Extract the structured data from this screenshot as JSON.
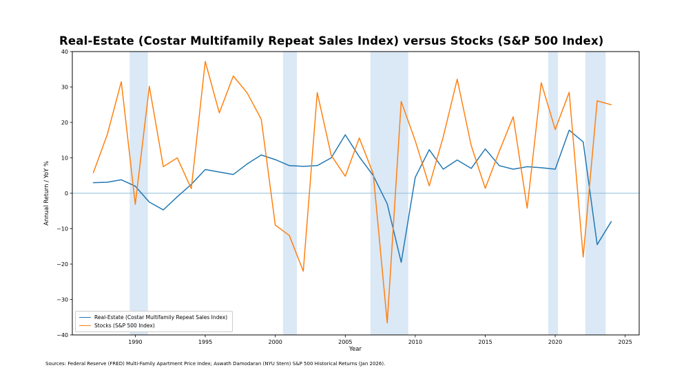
{
  "title": "Real-Estate (Costar Multifamily Repeat Sales Index) versus Stocks (S&P 500 Index)",
  "source_note": "Sources: Federal Reserve (FRED) Multi-Family Apartment Price Index; Aswath Damodaran (NYU Stern) S&P 500 Historical Returns (Jan 2026).",
  "chart_data": {
    "type": "line",
    "title": "Real-Estate (Costar Multifamily Repeat Sales Index) versus Stocks (S&P 500 Index)",
    "xlabel": "Year",
    "ylabel": "Annual Return / YoY %",
    "xlim": [
      1985.5,
      2026
    ],
    "ylim": [
      -40,
      40
    ],
    "xticks": [
      1990,
      1995,
      2000,
      2005,
      2010,
      2015,
      2020,
      2025
    ],
    "yticks": [
      -40,
      -30,
      -20,
      -10,
      0,
      10,
      20,
      30,
      40
    ],
    "grid": false,
    "legend_position": "lower left",
    "zero_line_color": "#8bbdd9",
    "band_color": "#dbe8f5",
    "recession_bands": [
      [
        1989.6,
        1990.9
      ],
      [
        2000.55,
        2001.55
      ],
      [
        2006.8,
        2009.5
      ],
      [
        2019.5,
        2020.2
      ],
      [
        2022.15,
        2023.6
      ]
    ],
    "x": [
      1987,
      1988,
      1989,
      1990,
      1991,
      1992,
      1993,
      1994,
      1995,
      1996,
      1997,
      1998,
      1999,
      2000,
      2001,
      2002,
      2003,
      2004,
      2005,
      2006,
      2007,
      2008,
      2009,
      2010,
      2011,
      2012,
      2013,
      2014,
      2015,
      2016,
      2017,
      2018,
      2019,
      2020,
      2021,
      2022,
      2023,
      2024
    ],
    "series": [
      {
        "name": "Real-Estate (Costar Multifamily Repeat Sales Index)",
        "color": "#1f77b4",
        "values": [
          3.0,
          3.1,
          3.8,
          2.0,
          -2.5,
          -4.7,
          -1.0,
          2.5,
          6.7,
          6.0,
          5.3,
          8.3,
          10.8,
          9.5,
          7.8,
          7.6,
          7.8,
          10.0,
          16.5,
          10.3,
          5.0,
          -3.0,
          -19.5,
          4.5,
          12.3,
          6.8,
          9.4,
          7.0,
          12.5,
          7.8,
          6.8,
          7.5,
          7.2,
          6.8,
          17.8,
          14.5,
          -14.5,
          -8.0
        ]
      },
      {
        "name": "Stocks (S&P 500 Index)",
        "color": "#ff7f0e",
        "values": [
          5.8,
          16.6,
          31.5,
          -3.1,
          30.2,
          7.5,
          10.0,
          1.3,
          37.2,
          22.7,
          33.1,
          28.3,
          20.9,
          -9.0,
          -11.9,
          -22.0,
          28.4,
          10.7,
          4.8,
          15.6,
          5.5,
          -36.6,
          25.9,
          14.8,
          2.1,
          15.9,
          32.2,
          13.5,
          1.4,
          11.8,
          21.6,
          -4.2,
          31.2,
          18.0,
          28.5,
          -18.0,
          26.1,
          25.0
        ]
      }
    ]
  }
}
